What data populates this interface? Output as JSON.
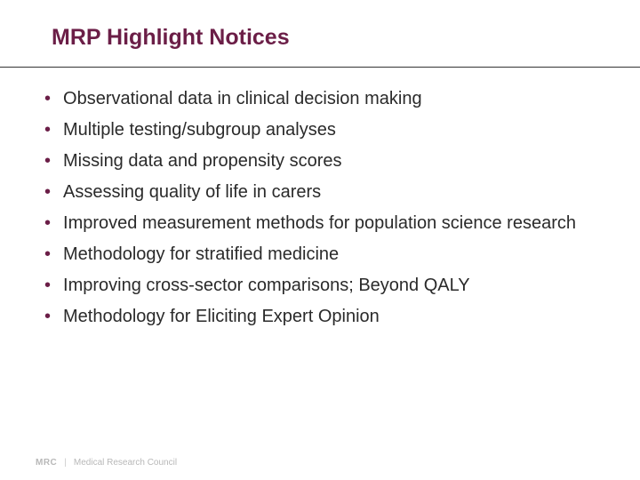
{
  "slide": {
    "title": "MRP Highlight Notices",
    "title_color": "#6b1e47",
    "title_fontsize": 25,
    "background_color": "#ffffff",
    "divider_color": "#333333",
    "bullets": [
      "Observational data in clinical decision making",
      "Multiple testing/subgroup analyses",
      "Missing data and propensity scores",
      "Assessing quality of life in carers",
      "Improved measurement methods for population science research",
      "Methodology for stratified medicine",
      "Improving cross-sector comparisons; Beyond QALY",
      "Methodology for Eliciting Expert Opinion"
    ],
    "bullet_marker": "•",
    "bullet_marker_color": "#6b1e47",
    "bullet_text_color": "#2a2a2a",
    "bullet_fontsize": 20
  },
  "footer": {
    "logo": "MRC",
    "text": "Medical Research Council",
    "color": "#b8b8b8"
  }
}
